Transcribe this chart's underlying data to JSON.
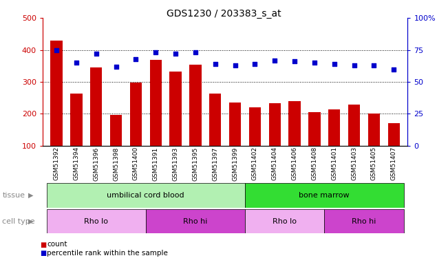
{
  "title": "GDS1230 / 203383_s_at",
  "samples": [
    "GSM51392",
    "GSM51394",
    "GSM51396",
    "GSM51398",
    "GSM51400",
    "GSM51391",
    "GSM51393",
    "GSM51395",
    "GSM51397",
    "GSM51399",
    "GSM51402",
    "GSM51404",
    "GSM51406",
    "GSM51408",
    "GSM51401",
    "GSM51403",
    "GSM51405",
    "GSM51407"
  ],
  "bar_values": [
    430,
    263,
    345,
    197,
    297,
    370,
    333,
    355,
    263,
    235,
    220,
    233,
    240,
    205,
    215,
    230,
    200,
    170
  ],
  "scatter_values": [
    75,
    65,
    72,
    62,
    68,
    73,
    72,
    73,
    64,
    63,
    64,
    67,
    66,
    65,
    64,
    63,
    63,
    60
  ],
  "bar_color": "#cc0000",
  "scatter_color": "#0000cc",
  "left_axis_color": "#cc0000",
  "right_axis_color": "#0000cc",
  "ylim_left": [
    100,
    500
  ],
  "ylim_right": [
    0,
    100
  ],
  "yticks_left": [
    100,
    200,
    300,
    400,
    500
  ],
  "yticks_right": [
    0,
    25,
    50,
    75,
    100
  ],
  "ytick_right_labels": [
    "0",
    "25",
    "50",
    "75",
    "100%"
  ],
  "grid_values": [
    200,
    300,
    400
  ],
  "tissue_labels": [
    {
      "text": "umbilical cord blood",
      "start": 0,
      "end": 9,
      "color": "#b2f0b2"
    },
    {
      "text": "bone marrow",
      "start": 10,
      "end": 17,
      "color": "#33dd33"
    }
  ],
  "cell_type_labels": [
    {
      "text": "Rho lo",
      "start": 0,
      "end": 4,
      "color": "#f0b0f0"
    },
    {
      "text": "Rho hi",
      "start": 5,
      "end": 9,
      "color": "#cc44cc"
    },
    {
      "text": "Rho lo",
      "start": 10,
      "end": 13,
      "color": "#f0b0f0"
    },
    {
      "text": "Rho hi",
      "start": 14,
      "end": 17,
      "color": "#cc44cc"
    }
  ],
  "legend_items": [
    {
      "label": "count",
      "color": "#cc0000"
    },
    {
      "label": "percentile rank within the sample",
      "color": "#0000cc"
    }
  ],
  "tissue_row_label": "tissue",
  "cell_type_row_label": "cell type"
}
